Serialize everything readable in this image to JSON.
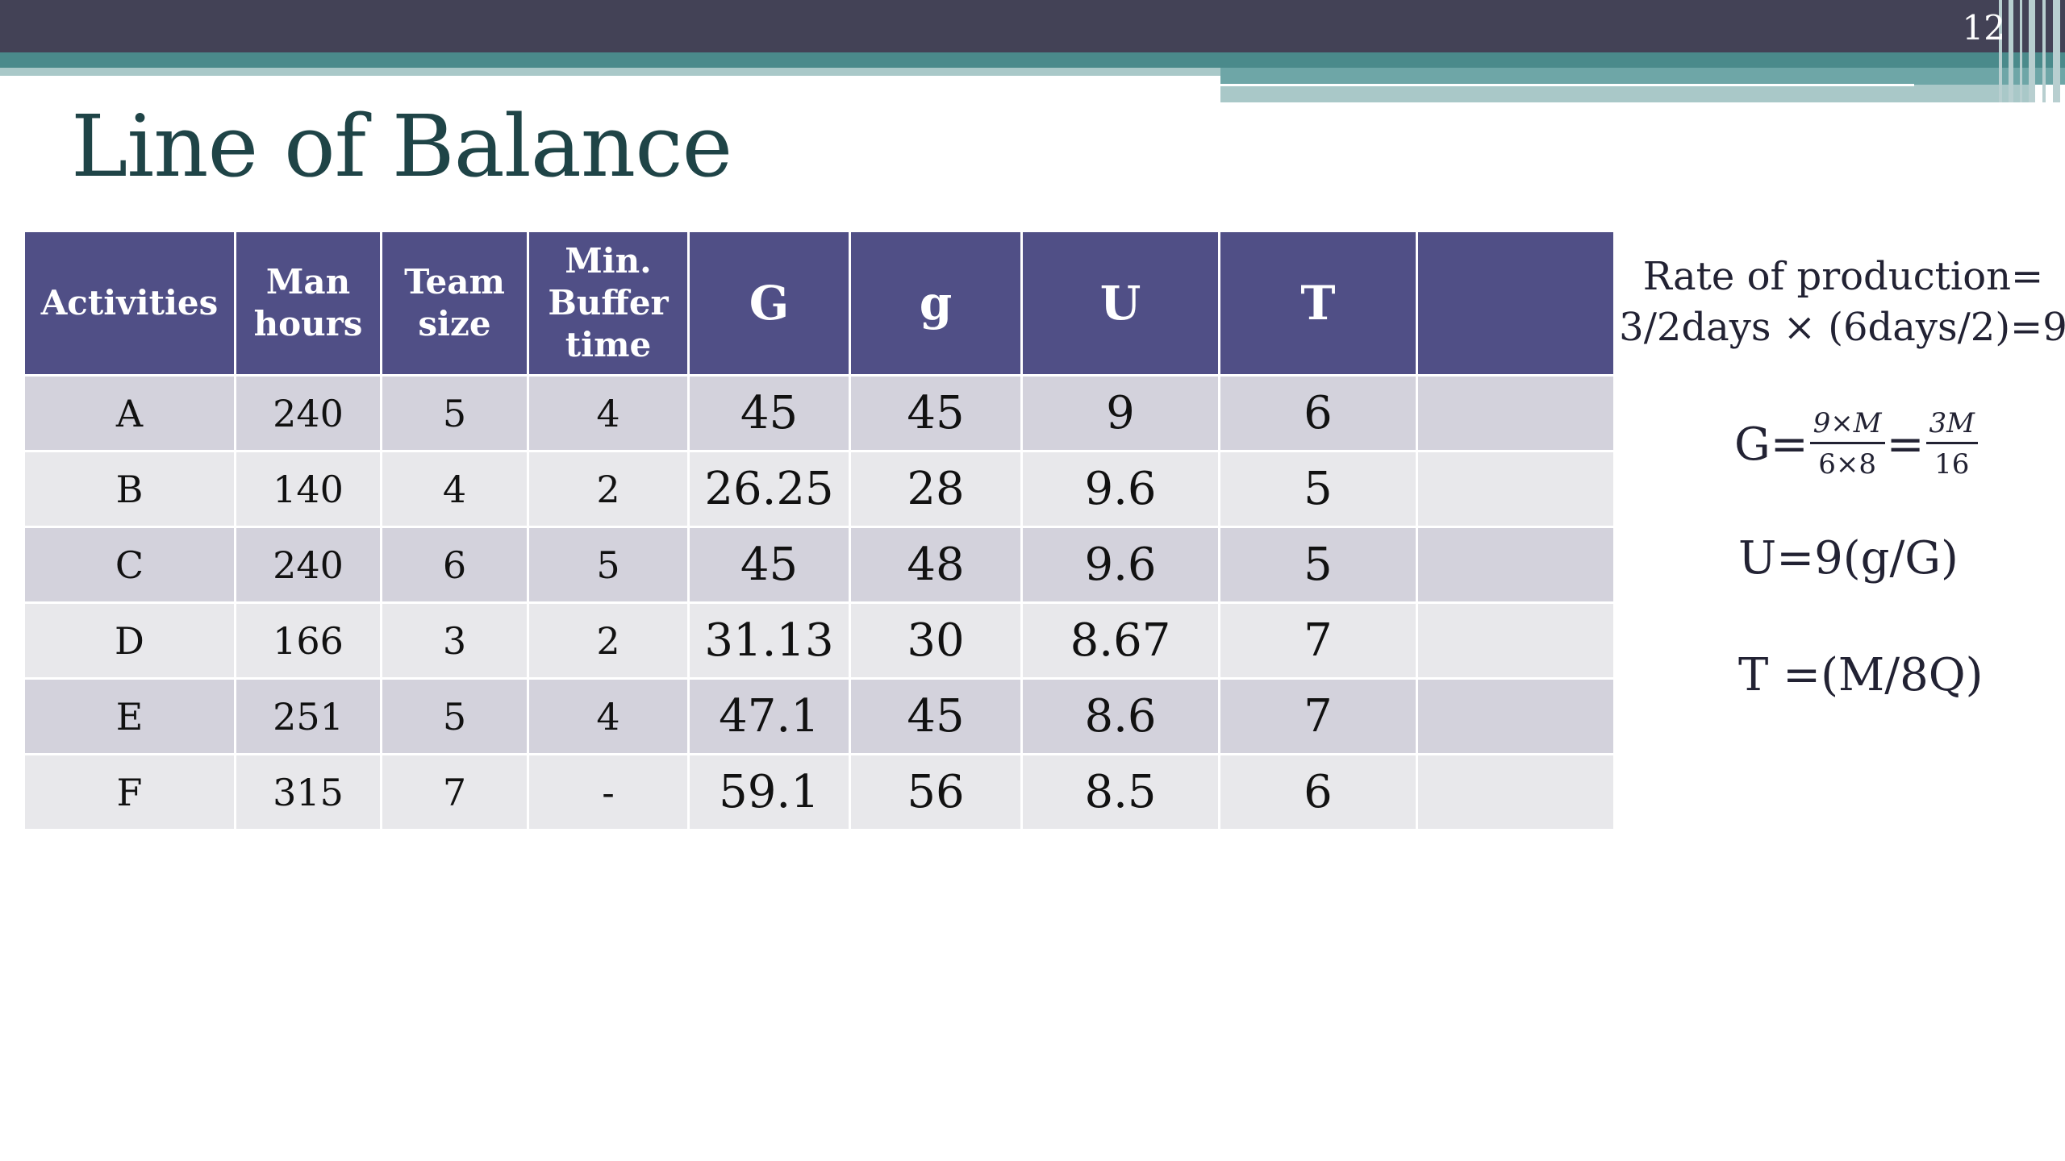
{
  "slide_number": "12",
  "title": "Line of Balance",
  "table": {
    "headers": [
      {
        "label": "Activities",
        "big": false
      },
      {
        "label": "Man hours",
        "big": false
      },
      {
        "label": "Team size",
        "big": false
      },
      {
        "label": "Min. Buffer time",
        "big": false
      },
      {
        "label": "G",
        "big": true
      },
      {
        "label": "g",
        "big": true
      },
      {
        "label": "U",
        "big": true
      },
      {
        "label": "T",
        "big": true
      },
      {
        "label": "",
        "big": false
      }
    ],
    "rows": [
      [
        "A",
        "240",
        "5",
        "4",
        "45",
        "45",
        "9",
        "6",
        ""
      ],
      [
        "B",
        "140",
        "4",
        "2",
        "26.25",
        "28",
        "9.6",
        "5",
        ""
      ],
      [
        "C",
        "240",
        "6",
        "5",
        "45",
        "48",
        "9.6",
        "5",
        ""
      ],
      [
        "D",
        "166",
        "3",
        "2",
        "31.13",
        "30",
        "8.67",
        "7",
        ""
      ],
      [
        "E",
        "251",
        "5",
        "4",
        "47.1",
        "45",
        "8.6",
        "7",
        ""
      ],
      [
        "F",
        "315",
        "7",
        "-",
        "59.1",
        "56",
        "8.5",
        "6",
        ""
      ]
    ]
  },
  "side": {
    "rate_line1": "Rate of production=",
    "rate_line2": "3/2days × (6days/2)=9",
    "g_prefix": "G=",
    "g_frac1_num": "9×M",
    "g_frac1_den": "6×8",
    "g_eq": "=",
    "g_frac2_num": "3M",
    "g_frac2_den": "16",
    "u_formula": "U=9(g/G)",
    "t_formula": "T =(M/8Q)"
  }
}
